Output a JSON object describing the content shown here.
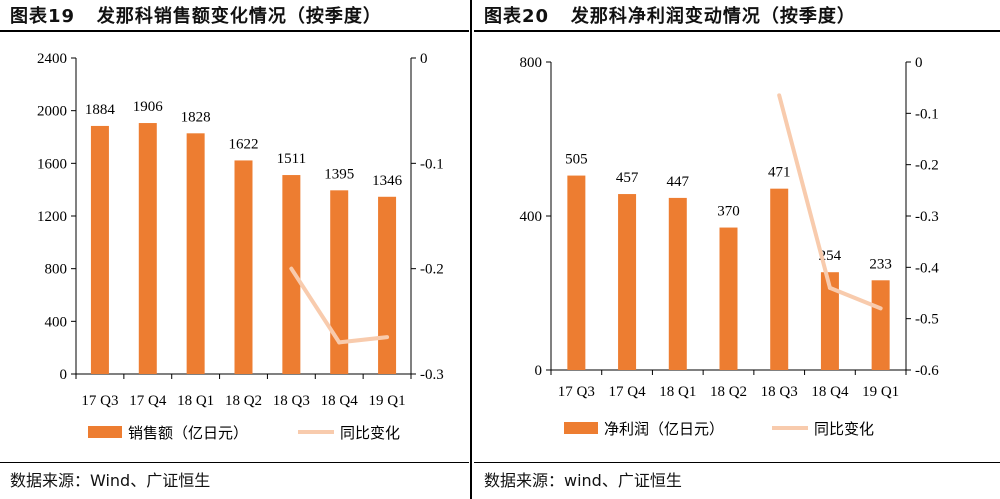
{
  "charts": [
    {
      "label": "图表19",
      "title": "发那科销售额变化情况（按季度）",
      "source": "数据来源：Wind、广证恒生"
    },
    {
      "label": "图表20",
      "title": "发那科净利润变动情况（按季度）",
      "source": "数据来源：wind、广证恒生"
    }
  ],
  "colors": {
    "bar": "#ED7D31",
    "line": "#F8CBAD"
  },
  "chart_data": [
    {
      "type": "bar",
      "categories": [
        "17 Q3",
        "17 Q4",
        "18 Q1",
        "18 Q2",
        "18 Q3",
        "18 Q4",
        "19 Q1"
      ],
      "series": [
        {
          "name": "销售额（亿日元）",
          "type": "bar",
          "axis": "left",
          "values": [
            1884,
            1906,
            1828,
            1622,
            1511,
            1395,
            1346
          ],
          "data_labels": [
            "1884",
            "1906",
            "1828",
            "1622",
            "1511",
            "1395",
            "1346"
          ]
        },
        {
          "name": "同比变化",
          "type": "line",
          "axis": "right",
          "values": [
            null,
            null,
            null,
            null,
            -0.2,
            -0.27,
            -0.265
          ]
        }
      ],
      "left_axis": {
        "ylim": [
          0,
          2400
        ],
        "ticks": [
          0,
          400,
          800,
          1200,
          1600,
          2000,
          2400
        ],
        "tick_labels": [
          "0",
          "400",
          "800",
          "1200",
          "1600",
          "2000",
          "2400"
        ]
      },
      "right_axis": {
        "ylim": [
          -0.3,
          0
        ],
        "ticks": [
          0,
          -0.1,
          -0.2,
          -0.3
        ],
        "tick_labels": [
          "0",
          "-0.1",
          "-0.2",
          "-0.3"
        ]
      },
      "legend": "bottom",
      "grid": false
    },
    {
      "type": "bar",
      "categories": [
        "17 Q3",
        "17 Q4",
        "18 Q1",
        "18 Q2",
        "18 Q3",
        "18 Q4",
        "19 Q1"
      ],
      "series": [
        {
          "name": "净利润（亿日元）",
          "type": "bar",
          "axis": "left",
          "values": [
            505,
            457,
            447,
            370,
            471,
            254,
            233
          ],
          "data_labels": [
            "505",
            "457",
            "447",
            "370",
            "471",
            "254",
            "233"
          ]
        },
        {
          "name": "同比变化",
          "type": "line",
          "axis": "right",
          "values": [
            null,
            null,
            null,
            null,
            -0.065,
            -0.44,
            -0.48
          ]
        }
      ],
      "left_axis": {
        "ylim": [
          0,
          800
        ],
        "ticks": [
          0,
          400,
          800
        ],
        "tick_labels": [
          "0",
          "400",
          "800"
        ]
      },
      "right_axis": {
        "ylim": [
          -0.6,
          0
        ],
        "ticks": [
          0,
          -0.1,
          -0.2,
          -0.3,
          -0.4,
          -0.5,
          -0.6
        ],
        "tick_labels": [
          "0",
          "-0.1",
          "-0.2",
          "-0.3",
          "-0.4",
          "-0.5",
          "-0.6"
        ]
      },
      "legend": "bottom",
      "grid": false
    }
  ]
}
